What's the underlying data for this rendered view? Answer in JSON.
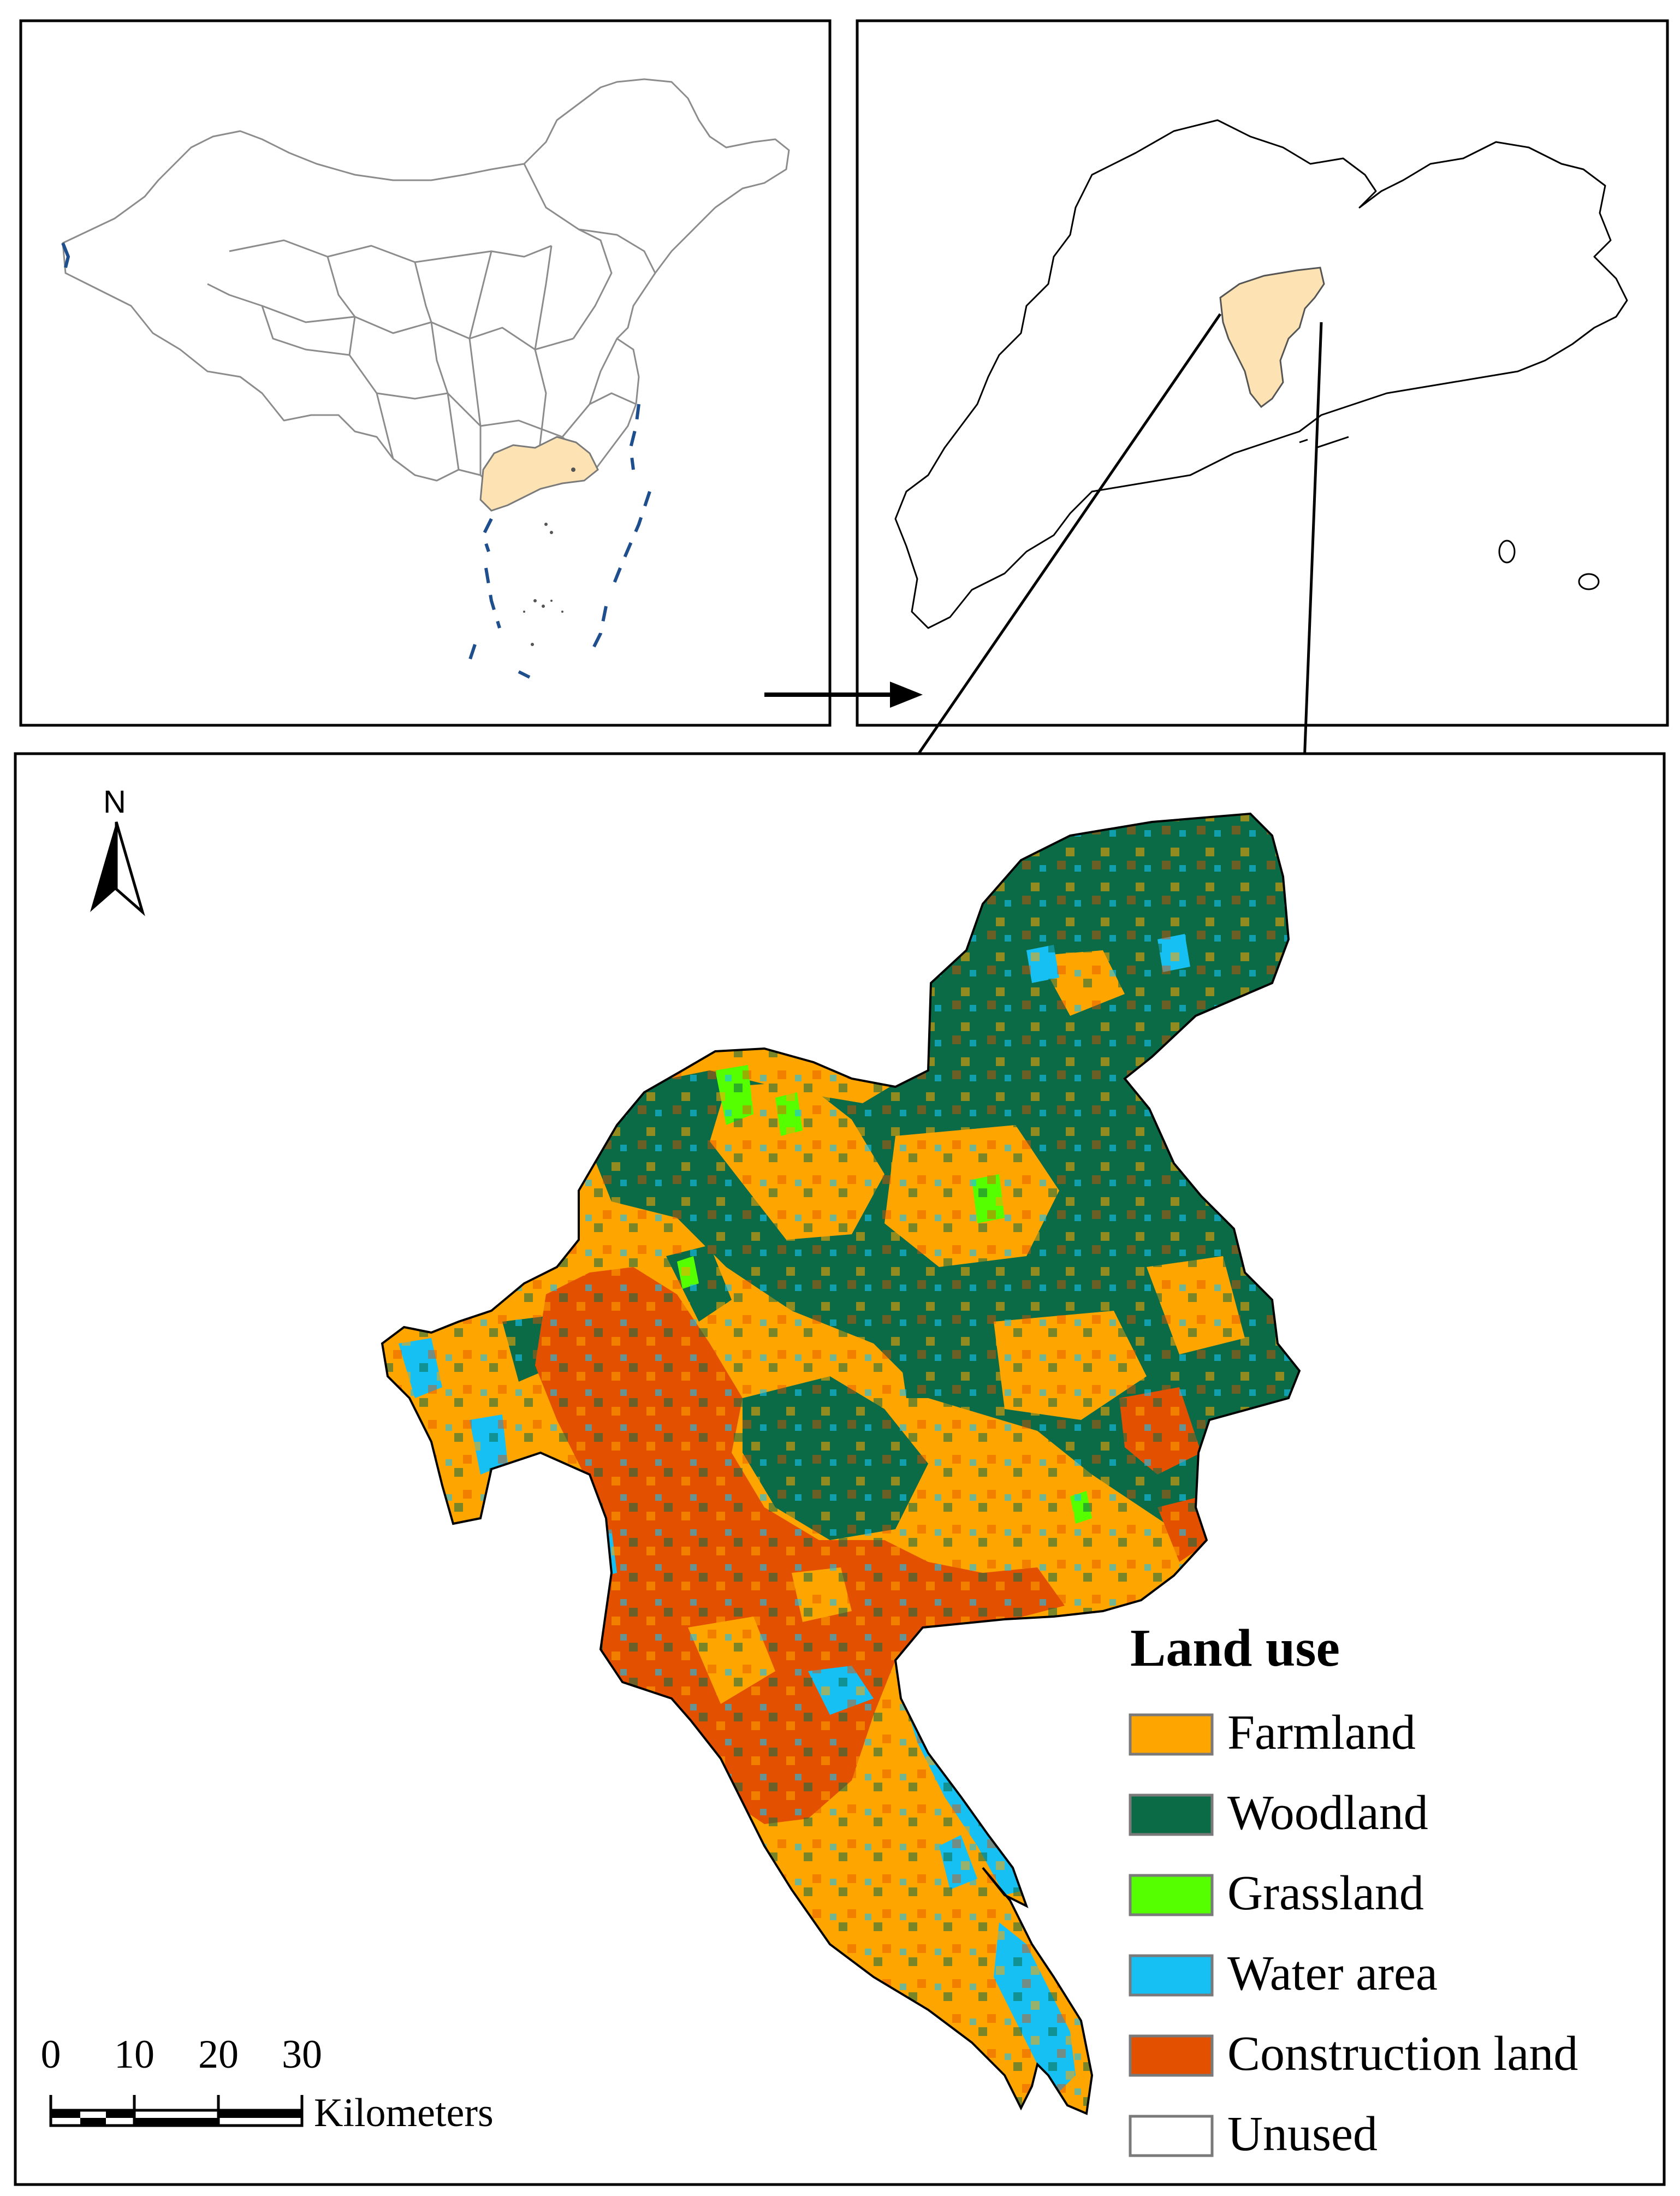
{
  "north_arrow": {
    "label": "N"
  },
  "scale_bar": {
    "ticks": [
      "0",
      "10",
      "20",
      "30"
    ],
    "unit": "Kilometers"
  },
  "legend": {
    "title": "Land use",
    "items": [
      {
        "label": "Farmland",
        "color": "#ffa500"
      },
      {
        "label": "Woodland",
        "color": "#0b6b46"
      },
      {
        "label": "Grassland",
        "color": "#55ff00"
      },
      {
        "label": "Water area",
        "color": "#16c0f2"
      },
      {
        "label": "Construction land",
        "color": "#e35000"
      },
      {
        "label": "Unused",
        "color": "#ffffff"
      }
    ]
  },
  "map_colors": {
    "highlight_province": "#fde3b3",
    "boundary": "#888888",
    "dashed_boundary": "#1f4e8c"
  }
}
